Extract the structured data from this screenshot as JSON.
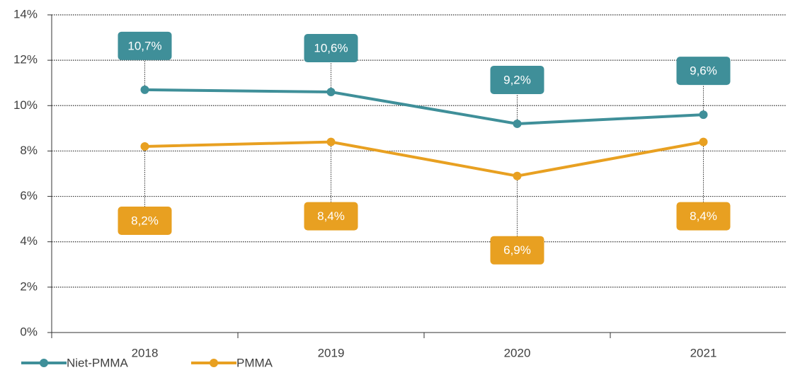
{
  "chart_data": {
    "type": "line",
    "categories": [
      "2018",
      "2019",
      "2020",
      "2021"
    ],
    "series": [
      {
        "name": "Niet-PMMA",
        "color": "#3f8f99",
        "values": [
          10.7,
          10.6,
          9.2,
          9.6
        ],
        "value_labels": [
          "10,7%",
          "10,6%",
          "9,2%",
          "9,6%"
        ]
      },
      {
        "name": "PMMA",
        "color": "#e8a021",
        "values": [
          8.2,
          8.4,
          6.9,
          8.4
        ],
        "value_labels": [
          "8,2%",
          "8,4%",
          "6,9%",
          "8,4%"
        ]
      }
    ],
    "ylim": [
      0,
      14
    ],
    "yticks": [
      {
        "value": 0,
        "label": "0%"
      },
      {
        "value": 2,
        "label": "2%"
      },
      {
        "value": 4,
        "label": "4%"
      },
      {
        "value": 6,
        "label": "6%"
      },
      {
        "value": 8,
        "label": "8%"
      },
      {
        "value": 10,
        "label": "10%"
      },
      {
        "value": 12,
        "label": "12%"
      },
      {
        "value": 14,
        "label": "14%"
      }
    ],
    "grid": true
  }
}
